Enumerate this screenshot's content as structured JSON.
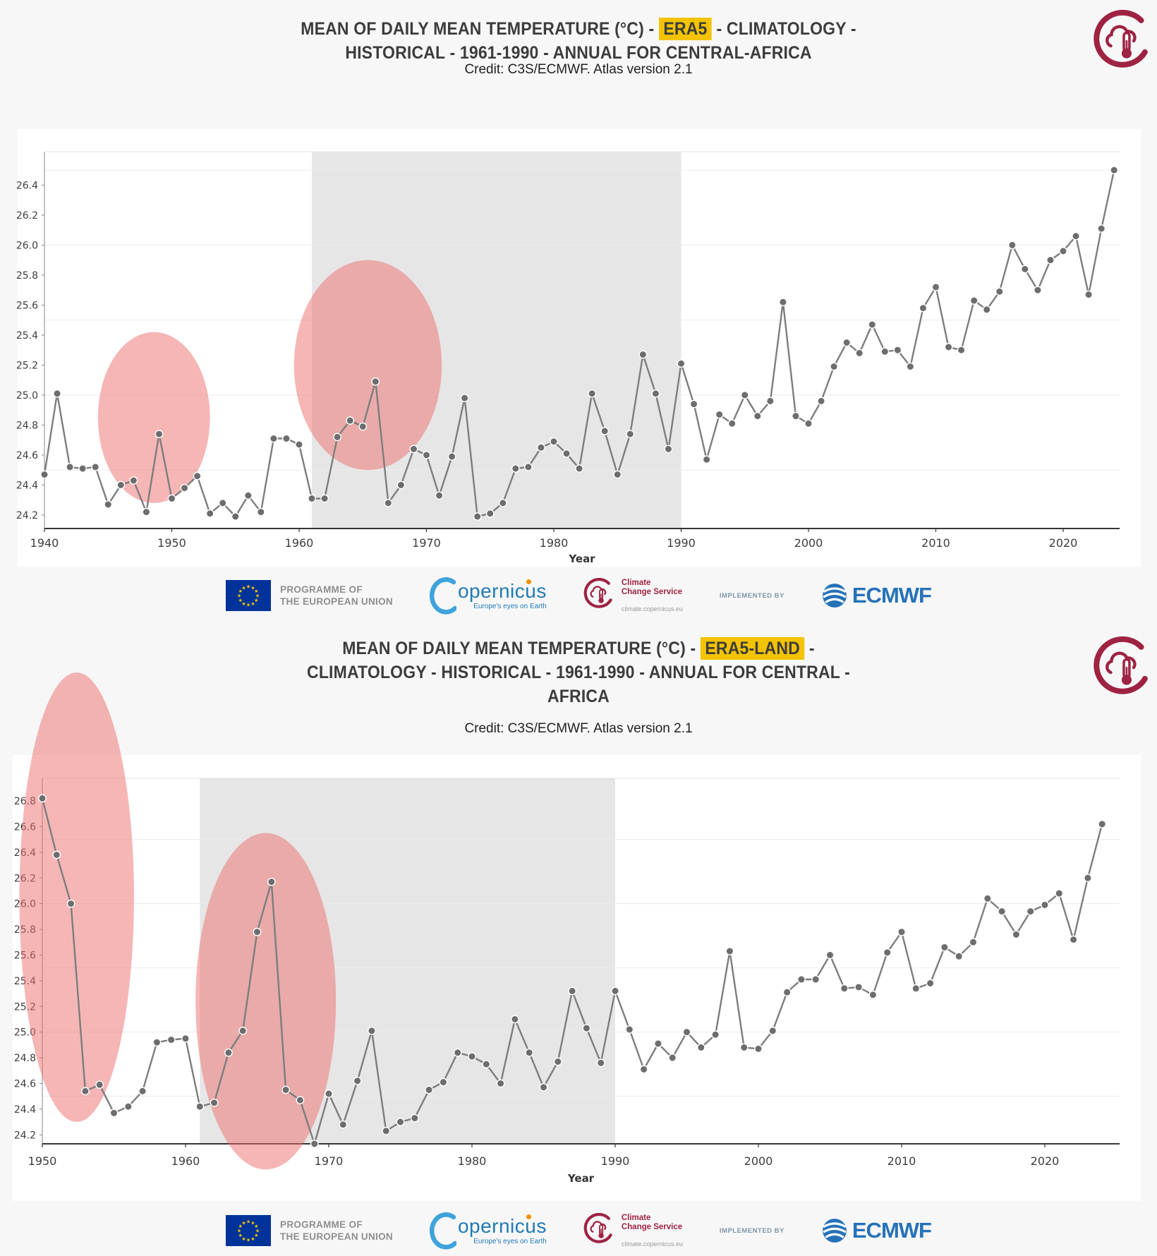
{
  "figures": [
    {
      "title_prefix": "MEAN OF DAILY MEAN TEMPERATURE (°C) - ",
      "title_highlight": "ERA5",
      "title_suffix": " - CLIMATOLOGY - HISTORICAL - 1961-1990 - ANNUAL FOR CENTRAL-AFRICA",
      "credit": "Credit: C3S/ECMWF. Atlas version 2.1"
    },
    {
      "title_prefix": "MEAN OF DAILY MEAN TEMPERATURE (°C) - ",
      "title_highlight": "ERA5-LAND",
      "title_suffix": " - CLIMATOLOGY - HISTORICAL - 1961-1990 - ANNUAL FOR CENTRAL -AFRICA",
      "credit": "Credit: C3S/ECMWF. Atlas version 2.1"
    }
  ],
  "footer": {
    "eu_label_line1": "PROGRAMME OF",
    "eu_label_line2": "THE EUROPEAN UNION",
    "copernicus_wordmark": "opernicus",
    "copernicus_tagline": "Europe's eyes on Earth",
    "ccs_name_line1": "Climate",
    "ccs_name_line2": "Change Service",
    "ccs_url": "climate.copernicus.eu",
    "implemented_by": "IMPLEMENTED BY",
    "ecmwf_wordmark": "ECMWF"
  },
  "chart_style": {
    "band_color": "#e6e6e6",
    "grid_color": "#ececec",
    "line_color": "#7d7d7d",
    "marker_color": "#6d6d6d",
    "marker_stroke": "#ffffff",
    "ellipse_color": "rgba(238,110,110,0.5)",
    "axis_color": "#1a1a1a",
    "spine_color": "#9a9a9a",
    "tick_label_color": "#3d3d3d",
    "highlight_color": "#f3c300",
    "brand_color": "#9e2343"
  },
  "chart_data": [
    {
      "type": "line",
      "title": "MEAN OF DAILY MEAN TEMPERATURE (°C) - ERA5 - CLIMATOLOGY - HISTORICAL - 1961-1990 - ANNUAL FOR CENTRAL-AFRICA",
      "xlabel": "Year",
      "ylabel": "",
      "x_range": [
        1940,
        2024
      ],
      "x_step": 1,
      "ylim": [
        24.11,
        26.62
      ],
      "yticks": {
        "min": 24.2,
        "max": 26.4,
        "step": 0.2
      },
      "xticks": [
        1940,
        1950,
        1960,
        1970,
        1980,
        1990,
        2000,
        2010,
        2020
      ],
      "gridlines": [
        24.5,
        25.0,
        25.5,
        26.0,
        26.5
      ],
      "grid": true,
      "legend": "none",
      "climatology_band": {
        "from": 1961,
        "to": 1990
      },
      "highlight_ellipses": [
        {
          "cx_year": 1948.6,
          "cy_value": 24.85,
          "rx_years": 4.4,
          "ry_value": 0.57
        },
        {
          "cx_year": 1965.4,
          "cy_value": 25.2,
          "rx_years": 5.8,
          "ry_value": 0.7
        }
      ],
      "values": [
        24.47,
        25.01,
        24.52,
        24.51,
        24.52,
        24.27,
        24.4,
        24.43,
        24.22,
        24.74,
        24.31,
        24.38,
        24.46,
        24.21,
        24.28,
        24.19,
        24.33,
        24.22,
        24.71,
        24.71,
        24.67,
        24.31,
        24.31,
        24.72,
        24.83,
        24.79,
        25.09,
        24.28,
        24.4,
        24.64,
        24.6,
        24.33,
        24.59,
        24.98,
        24.19,
        24.21,
        24.28,
        24.51,
        24.52,
        24.65,
        24.69,
        24.61,
        24.51,
        25.01,
        24.76,
        24.47,
        24.74,
        25.27,
        25.01,
        24.64,
        25.21,
        24.94,
        24.57,
        24.87,
        24.81,
        25.0,
        24.86,
        24.96,
        25.62,
        24.86,
        24.81,
        24.96,
        25.19,
        25.35,
        25.28,
        25.47,
        25.29,
        25.3,
        25.19,
        25.58,
        25.72,
        25.32,
        25.3,
        25.63,
        25.57,
        25.69,
        26.0,
        25.84,
        25.7,
        25.9,
        25.96,
        26.06,
        25.67,
        26.11,
        26.5
      ]
    },
    {
      "type": "line",
      "title": "MEAN OF DAILY MEAN TEMPERATURE (°C) - ERA5-LAND - CLIMATOLOGY - HISTORICAL - 1961-1990 - ANNUAL FOR CENTRAL -AFRICA",
      "xlabel": "Year",
      "ylabel": "",
      "x_range": [
        1950,
        2024
      ],
      "x_step": 1,
      "ylim": [
        24.13,
        26.98
      ],
      "yticks": {
        "min": 24.2,
        "max": 26.8,
        "step": 0.2
      },
      "xticks": [
        1950,
        1960,
        1970,
        1980,
        1990,
        2000,
        2010,
        2020
      ],
      "gridlines": [
        24.5,
        25.0,
        25.5,
        26.0,
        26.5
      ],
      "grid": true,
      "legend": "none",
      "climatology_band": {
        "from": 1961,
        "to": 1990
      },
      "highlight_ellipses": [
        {
          "cx_year": 1952.4,
          "cy_value": 26.05,
          "rx_years": 4.0,
          "ry_value": 1.75
        },
        {
          "cx_year": 1965.6,
          "cy_value": 25.24,
          "rx_years": 4.9,
          "ry_value": 1.31
        }
      ],
      "values": [
        26.82,
        26.38,
        26.0,
        24.54,
        24.59,
        24.37,
        24.42,
        24.54,
        24.92,
        24.94,
        24.95,
        24.42,
        24.45,
        24.84,
        25.01,
        25.78,
        26.17,
        24.55,
        24.47,
        24.13,
        24.52,
        24.28,
        24.62,
        25.01,
        24.23,
        24.3,
        24.33,
        24.55,
        24.61,
        24.84,
        24.81,
        24.75,
        24.6,
        25.1,
        24.84,
        24.57,
        24.77,
        25.32,
        25.03,
        24.76,
        25.32,
        25.02,
        24.71,
        24.91,
        24.8,
        25.0,
        24.88,
        24.98,
        25.63,
        24.88,
        24.87,
        25.01,
        25.31,
        25.41,
        25.41,
        25.6,
        25.34,
        25.35,
        25.29,
        25.62,
        25.78,
        25.34,
        25.38,
        25.66,
        25.59,
        25.7,
        26.04,
        25.94,
        25.76,
        25.94,
        25.99,
        26.08,
        25.72,
        26.2,
        26.62
      ]
    }
  ]
}
